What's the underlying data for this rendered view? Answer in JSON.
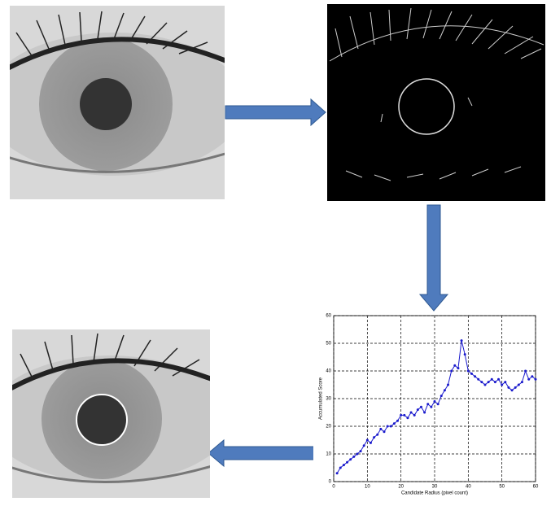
{
  "chart_data": {
    "type": "line",
    "xlabel": "Candidate Radius (pixel count)",
    "ylabel": "Accumulated Score",
    "x": [
      1,
      2,
      3,
      4,
      5,
      6,
      7,
      8,
      9,
      10,
      11,
      12,
      13,
      14,
      15,
      16,
      17,
      18,
      19,
      20,
      21,
      22,
      23,
      24,
      25,
      26,
      27,
      28,
      29,
      30,
      31,
      32,
      33,
      34,
      35,
      36,
      37,
      38,
      39,
      40,
      41,
      42,
      43,
      44,
      45,
      46,
      47,
      48,
      49,
      50,
      51,
      52,
      53,
      54,
      55,
      56,
      57,
      58,
      59,
      60
    ],
    "values": [
      3,
      5,
      6,
      7,
      8,
      9,
      10,
      11,
      13,
      15,
      14,
      16,
      17,
      19,
      18,
      20,
      20,
      21,
      22,
      24,
      24,
      23,
      25,
      24,
      26,
      27,
      25,
      28,
      27,
      29,
      28,
      31,
      33,
      35,
      40,
      42,
      41,
      51,
      46,
      40,
      39,
      38,
      37,
      36,
      35,
      36,
      37,
      36,
      37,
      35,
      36,
      34,
      33,
      34,
      35,
      36,
      40,
      37,
      38,
      37
    ],
    "color": "#1a1acc",
    "xlim": [
      0,
      60
    ],
    "ylim": [
      0,
      60
    ],
    "xticks": [
      0,
      10,
      20,
      30,
      40,
      50,
      60
    ],
    "yticks": [
      0,
      10,
      20,
      30,
      40,
      50,
      60
    ],
    "grid": true
  }
}
